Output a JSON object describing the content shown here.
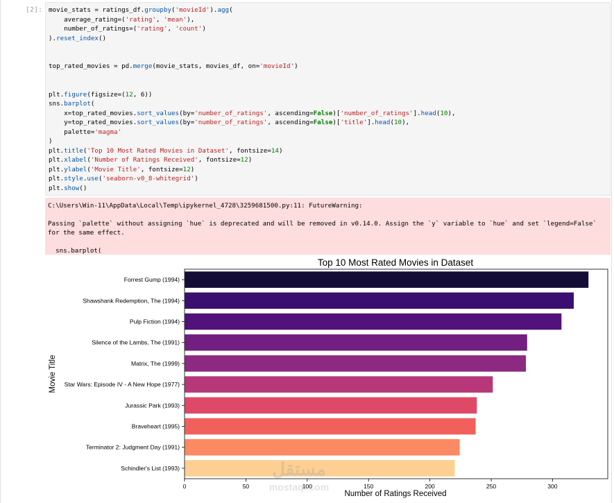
{
  "cell": {
    "prompt": "[2]:",
    "code_lines": [
      "movie_stats = ratings_df.groupby('movieId').agg(",
      "    average_rating=('rating', 'mean'),",
      "    number_of_ratings=('rating', 'count')",
      ").reset_index()",
      "",
      "",
      "top_rated_movies = pd.merge(movie_stats, movies_df, on='movieId')",
      "",
      "",
      "plt.figure(figsize=(12, 6))",
      "sns.barplot(",
      "    x=top_rated_movies.sort_values(by='number_of_ratings', ascending=False)['number_of_ratings'].head(10),",
      "    y=top_rated_movies.sort_values(by='number_of_ratings', ascending=False)['title'].head(10),",
      "    palette='magma'",
      ")",
      "plt.title('Top 10 Most Rated Movies in Dataset', fontsize=14)",
      "plt.xlabel('Number of Ratings Received', fontsize=12)",
      "plt.ylabel('Movie Title', fontsize=12)",
      "plt.style.use('seaborn-v0_8-whitegrid')",
      "plt.show()"
    ]
  },
  "output": {
    "warning_path": "C:\\Users\\Win-11\\AppData\\Local\\Temp\\ipykernel_4728\\3259681500.py:11: FutureWarning:",
    "warning_message": "Passing `palette` without assigning `hue` is deprecated and will be removed in v0.14.0. Assign the `y` variable to `hue` and set `legend=False` for the same effect.",
    "warning_call": "  sns.barplot("
  },
  "watermark": {
    "arabic": "مستقل",
    "latin": "mostaql.com"
  },
  "chart_data": {
    "type": "bar",
    "orientation": "horizontal",
    "title": "Top 10 Most Rated Movies in Dataset",
    "xlabel": "Number of Ratings Received",
    "ylabel": "Movie Title",
    "categories": [
      "Forrest Gump (1994)",
      "Shawshank Redemption, The (1994)",
      "Pulp Fiction (1994)",
      "Silence of the Lambs, The (1991)",
      "Matrix, The (1999)",
      "Star Wars: Episode IV - A New Hope (1977)",
      "Jurassic Park (1993)",
      "Braveheart (1995)",
      "Terminator 2: Judgment Day (1991)",
      "Schindler's List (1993)"
    ],
    "values": [
      329,
      317,
      307,
      279,
      278,
      251,
      238,
      237,
      224,
      220
    ],
    "xlim": [
      0,
      345
    ],
    "xticks": [
      0,
      50,
      100,
      150,
      200,
      250,
      300
    ],
    "palette": "magma",
    "colors": [
      "#140e36",
      "#3b0f70",
      "#51127c",
      "#721f81",
      "#8c2981",
      "#b73779",
      "#de4968",
      "#f1605d",
      "#fc8961",
      "#fecf92"
    ]
  }
}
